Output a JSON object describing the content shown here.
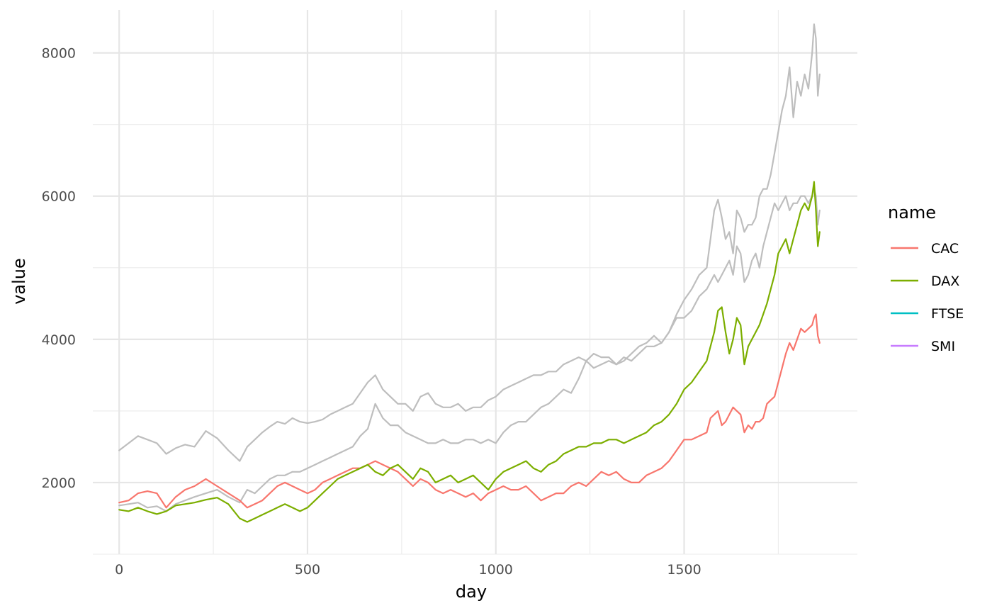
{
  "chart_data": {
    "type": "line",
    "title": "",
    "xlabel": "day",
    "ylabel": "value",
    "xlim": [
      -70,
      1960
    ],
    "ylim": [
      1000,
      8600
    ],
    "x_ticks": [
      0,
      500,
      1000,
      1500
    ],
    "x_tick_labels": [
      "0",
      "500",
      "1000",
      "1500"
    ],
    "y_ticks": [
      2000,
      4000,
      6000,
      8000
    ],
    "y_tick_labels": [
      "2000",
      "4000",
      "6000",
      "8000"
    ],
    "grid": true,
    "legend": {
      "title": "name",
      "placement": "right",
      "entries": [
        {
          "label": "CAC",
          "color": "#F8766D"
        },
        {
          "label": "DAX",
          "color": "#7CAE00"
        },
        {
          "label": "FTSE",
          "color": "#00BFC4"
        },
        {
          "label": "SMI",
          "color": "#C77CFF"
        }
      ]
    },
    "series": [
      {
        "name": "FTSE",
        "color": "#bebebe",
        "x": [
          0,
          25,
          50,
          75,
          100,
          125,
          150,
          175,
          200,
          230,
          260,
          290,
          320,
          340,
          360,
          380,
          400,
          420,
          440,
          460,
          480,
          500,
          520,
          540,
          560,
          580,
          600,
          620,
          640,
          660,
          680,
          700,
          720,
          740,
          760,
          780,
          800,
          820,
          840,
          860,
          880,
          900,
          920,
          940,
          960,
          980,
          1000,
          1020,
          1040,
          1060,
          1080,
          1100,
          1120,
          1140,
          1160,
          1180,
          1200,
          1220,
          1240,
          1260,
          1280,
          1300,
          1320,
          1340,
          1360,
          1380,
          1400,
          1420,
          1440,
          1460,
          1480,
          1500,
          1520,
          1540,
          1560,
          1570,
          1580,
          1590,
          1600,
          1610,
          1620,
          1630,
          1640,
          1650,
          1660,
          1670,
          1680,
          1690,
          1700,
          1710,
          1720,
          1730,
          1740,
          1750,
          1760,
          1770,
          1780,
          1790,
          1800,
          1810,
          1820,
          1830,
          1840,
          1845,
          1850,
          1855,
          1860
        ],
        "values": [
          2450,
          2550,
          2650,
          2600,
          2550,
          2400,
          2480,
          2530,
          2500,
          2720,
          2620,
          2450,
          2300,
          2500,
          2600,
          2700,
          2780,
          2850,
          2820,
          2900,
          2850,
          2830,
          2850,
          2880,
          2950,
          3000,
          3050,
          3100,
          3250,
          3400,
          3500,
          3300,
          3200,
          3100,
          3100,
          3000,
          3200,
          3250,
          3100,
          3050,
          3050,
          3100,
          3000,
          3050,
          3050,
          3150,
          3200,
          3300,
          3350,
          3400,
          3450,
          3500,
          3500,
          3550,
          3550,
          3650,
          3700,
          3750,
          3700,
          3800,
          3750,
          3750,
          3650,
          3700,
          3800,
          3900,
          3950,
          4050,
          3950,
          4100,
          4350,
          4550,
          4700,
          4900,
          5000,
          5400,
          5800,
          5950,
          5700,
          5400,
          5500,
          5200,
          5800,
          5700,
          5500,
          5600,
          5600,
          5700,
          6000,
          6100,
          6100,
          6300,
          6600,
          6900,
          7200,
          7400,
          7800,
          7100,
          7600,
          7400,
          7700,
          7500,
          8000,
          8400,
          8200,
          7400,
          7700
        ]
      },
      {
        "name": "SMI",
        "color": "#bebebe",
        "x": [
          0,
          25,
          50,
          75,
          100,
          125,
          150,
          175,
          200,
          230,
          260,
          290,
          320,
          340,
          360,
          380,
          400,
          420,
          440,
          460,
          480,
          500,
          520,
          540,
          560,
          580,
          600,
          620,
          640,
          660,
          680,
          700,
          720,
          740,
          760,
          780,
          800,
          820,
          840,
          860,
          880,
          900,
          920,
          940,
          960,
          980,
          1000,
          1020,
          1040,
          1060,
          1080,
          1100,
          1120,
          1140,
          1160,
          1180,
          1200,
          1220,
          1240,
          1260,
          1280,
          1300,
          1320,
          1340,
          1360,
          1380,
          1400,
          1420,
          1440,
          1460,
          1480,
          1500,
          1520,
          1540,
          1560,
          1570,
          1580,
          1590,
          1600,
          1610,
          1620,
          1630,
          1640,
          1650,
          1660,
          1670,
          1680,
          1690,
          1700,
          1710,
          1720,
          1730,
          1740,
          1750,
          1760,
          1770,
          1780,
          1790,
          1800,
          1810,
          1820,
          1830,
          1840,
          1845,
          1850,
          1855,
          1860
        ],
        "values": [
          1680,
          1700,
          1720,
          1650,
          1670,
          1600,
          1700,
          1750,
          1800,
          1850,
          1900,
          1800,
          1720,
          1900,
          1850,
          1950,
          2050,
          2100,
          2100,
          2150,
          2150,
          2200,
          2250,
          2300,
          2350,
          2400,
          2450,
          2500,
          2650,
          2750,
          3100,
          2900,
          2800,
          2800,
          2700,
          2650,
          2600,
          2550,
          2550,
          2600,
          2550,
          2550,
          2600,
          2600,
          2550,
          2600,
          2550,
          2700,
          2800,
          2850,
          2850,
          2950,
          3050,
          3100,
          3200,
          3300,
          3250,
          3450,
          3700,
          3600,
          3650,
          3700,
          3650,
          3750,
          3700,
          3800,
          3900,
          3900,
          3950,
          4100,
          4300,
          4300,
          4400,
          4600,
          4700,
          4800,
          4900,
          4800,
          4900,
          5000,
          5100,
          4900,
          5300,
          5200,
          4800,
          4900,
          5100,
          5200,
          5000,
          5300,
          5500,
          5700,
          5900,
          5800,
          5900,
          6000,
          5800,
          5900,
          5900,
          6000,
          6000,
          5900,
          6000,
          6100,
          6000,
          5600,
          5800
        ]
      },
      {
        "name": "CAC",
        "color": "#F8766D",
        "x": [
          0,
          25,
          50,
          75,
          100,
          125,
          150,
          175,
          200,
          230,
          260,
          290,
          320,
          340,
          360,
          380,
          400,
          420,
          440,
          460,
          480,
          500,
          520,
          540,
          560,
          580,
          600,
          620,
          640,
          660,
          680,
          700,
          720,
          740,
          760,
          780,
          800,
          820,
          840,
          860,
          880,
          900,
          920,
          940,
          960,
          980,
          1000,
          1020,
          1040,
          1060,
          1080,
          1100,
          1120,
          1140,
          1160,
          1180,
          1200,
          1220,
          1240,
          1260,
          1280,
          1300,
          1320,
          1340,
          1360,
          1380,
          1400,
          1420,
          1440,
          1460,
          1480,
          1500,
          1520,
          1540,
          1560,
          1570,
          1580,
          1590,
          1600,
          1610,
          1620,
          1630,
          1640,
          1650,
          1660,
          1670,
          1680,
          1690,
          1700,
          1710,
          1720,
          1730,
          1740,
          1750,
          1760,
          1770,
          1780,
          1790,
          1800,
          1810,
          1820,
          1830,
          1840,
          1845,
          1850,
          1855,
          1860
        ],
        "values": [
          1720,
          1750,
          1850,
          1880,
          1850,
          1650,
          1800,
          1900,
          1950,
          2050,
          1950,
          1850,
          1750,
          1650,
          1700,
          1750,
          1850,
          1950,
          2000,
          1950,
          1900,
          1850,
          1900,
          2000,
          2050,
          2100,
          2150,
          2200,
          2200,
          2250,
          2300,
          2250,
          2200,
          2150,
          2050,
          1950,
          2050,
          2000,
          1900,
          1850,
          1900,
          1850,
          1800,
          1850,
          1750,
          1850,
          1900,
          1950,
          1900,
          1900,
          1950,
          1850,
          1750,
          1800,
          1850,
          1850,
          1950,
          2000,
          1950,
          2050,
          2150,
          2100,
          2150,
          2050,
          2000,
          2000,
          2100,
          2150,
          2200,
          2300,
          2450,
          2600,
          2600,
          2650,
          2700,
          2900,
          2950,
          3000,
          2800,
          2850,
          2950,
          3050,
          3000,
          2950,
          2700,
          2800,
          2750,
          2850,
          2850,
          2900,
          3100,
          3150,
          3200,
          3400,
          3600,
          3800,
          3950,
          3850,
          4000,
          4150,
          4100,
          4150,
          4200,
          4300,
          4350,
          4050,
          3950
        ]
      },
      {
        "name": "DAX",
        "color": "#7CAE00",
        "x": [
          0,
          25,
          50,
          75,
          100,
          125,
          150,
          175,
          200,
          230,
          260,
          290,
          320,
          340,
          360,
          380,
          400,
          420,
          440,
          460,
          480,
          500,
          520,
          540,
          560,
          580,
          600,
          620,
          640,
          660,
          680,
          700,
          720,
          740,
          760,
          780,
          800,
          820,
          840,
          860,
          880,
          900,
          920,
          940,
          960,
          980,
          1000,
          1020,
          1040,
          1060,
          1080,
          1100,
          1120,
          1140,
          1160,
          1180,
          1200,
          1220,
          1240,
          1260,
          1280,
          1300,
          1320,
          1340,
          1360,
          1380,
          1400,
          1420,
          1440,
          1460,
          1480,
          1500,
          1520,
          1540,
          1560,
          1570,
          1580,
          1590,
          1600,
          1610,
          1620,
          1630,
          1640,
          1650,
          1660,
          1670,
          1680,
          1690,
          1700,
          1710,
          1720,
          1730,
          1740,
          1750,
          1760,
          1770,
          1780,
          1790,
          1800,
          1810,
          1820,
          1830,
          1840,
          1845,
          1850,
          1855,
          1860
        ],
        "values": [
          1620,
          1600,
          1650,
          1600,
          1560,
          1600,
          1680,
          1700,
          1720,
          1760,
          1790,
          1700,
          1500,
          1450,
          1500,
          1550,
          1600,
          1650,
          1700,
          1650,
          1600,
          1650,
          1750,
          1850,
          1950,
          2050,
          2100,
          2150,
          2200,
          2250,
          2150,
          2100,
          2200,
          2250,
          2150,
          2050,
          2200,
          2150,
          2000,
          2050,
          2100,
          2000,
          2050,
          2100,
          2000,
          1900,
          2050,
          2150,
          2200,
          2250,
          2300,
          2200,
          2150,
          2250,
          2300,
          2400,
          2450,
          2500,
          2500,
          2550,
          2550,
          2600,
          2600,
          2550,
          2600,
          2650,
          2700,
          2800,
          2850,
          2950,
          3100,
          3300,
          3400,
          3550,
          3700,
          3900,
          4100,
          4400,
          4450,
          4100,
          3800,
          4000,
          4300,
          4200,
          3650,
          3900,
          4000,
          4100,
          4200,
          4350,
          4500,
          4700,
          4900,
          5200,
          5300,
          5400,
          5200,
          5400,
          5600,
          5800,
          5900,
          5800,
          6000,
          6200,
          5800,
          5300,
          5500
        ]
      }
    ]
  }
}
